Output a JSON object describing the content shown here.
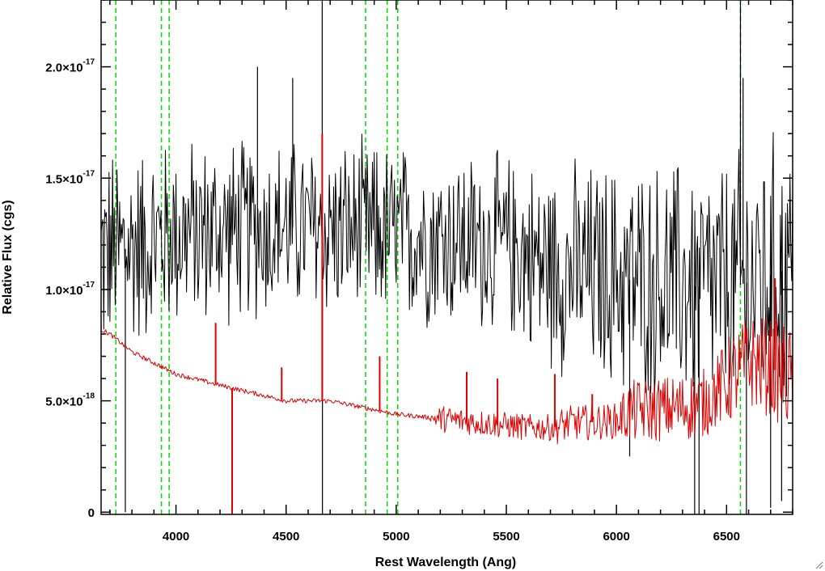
{
  "chart_data": {
    "type": "line",
    "xlabel": "Rest Wavelength (Ang)",
    "ylabel": "Relative Flux (cgs)",
    "xlim": [
      3660,
      6800
    ],
    "ylim": [
      -1e-19,
      2.3e-17
    ],
    "x_ticks": [
      4000,
      4500,
      5000,
      5500,
      6000,
      6500
    ],
    "x_tick_labels": [
      "4000",
      "4500",
      "5000",
      "5500",
      "6000",
      "6500"
    ],
    "x_minor_step": 100,
    "y_ticks": [
      {
        "value": 0,
        "mantissa": "0",
        "exponent": ""
      },
      {
        "value": 5e-18,
        "mantissa": "5.0×10",
        "exponent": "-18"
      },
      {
        "value": 1e-17,
        "mantissa": "1.0×10",
        "exponent": "-17"
      },
      {
        "value": 1.5e-17,
        "mantissa": "1.5×10",
        "exponent": "-17"
      },
      {
        "value": 2e-17,
        "mantissa": "2.0×10",
        "exponent": "-17"
      }
    ],
    "y_minor_step": 1e-18,
    "grid": false,
    "legend": "none",
    "marker_lines": {
      "color": "#00dd00",
      "style": "dashed",
      "x": [
        3727,
        3934,
        3969,
        4861,
        4959,
        5007,
        6563
      ]
    },
    "series": [
      {
        "color": "#000000",
        "x_start": 3660,
        "x_end": 6800,
        "x_step": 4,
        "level_points": [
          [
            3660,
            11.5
          ],
          [
            4000,
            12.5
          ],
          [
            4500,
            12.8
          ],
          [
            5000,
            12.5
          ],
          [
            5500,
            12.0
          ],
          [
            5700,
            11.0
          ],
          [
            6000,
            10.5
          ],
          [
            6500,
            10.0
          ],
          [
            6800,
            11.0
          ]
        ],
        "noise_amplitude_points": [
          [
            3660,
            4.5
          ],
          [
            4000,
            4.0
          ],
          [
            4500,
            3.8
          ],
          [
            5000,
            3.8
          ],
          [
            5500,
            3.8
          ],
          [
            5800,
            4.6
          ],
          [
            6100,
            5.0
          ],
          [
            6500,
            5.6
          ],
          [
            6800,
            6.0
          ]
        ],
        "spikes": [
          [
            4664,
            31
          ],
          [
            6563,
            31
          ],
          [
            4665,
            -2
          ],
          [
            3770,
            0
          ],
          [
            4370,
            20
          ],
          [
            4530,
            19.5
          ],
          [
            6575,
            19.5
          ],
          [
            6375,
            -1
          ],
          [
            6355,
            -0.5
          ],
          [
            6060,
            2.5
          ],
          [
            6590,
            -1
          ],
          [
            6700,
            0.2
          ],
          [
            6750,
            0.5
          ]
        ]
      },
      {
        "color": "#dd0000",
        "x_start": 3660,
        "x_end": 6800,
        "x_step": 4,
        "continuum_points": [
          [
            3660,
            8.2
          ],
          [
            3700,
            8.0
          ],
          [
            3800,
            7.2
          ],
          [
            3900,
            6.7
          ],
          [
            4000,
            6.2
          ],
          [
            4200,
            5.7
          ],
          [
            4500,
            5.0
          ],
          [
            4700,
            5.0
          ],
          [
            4900,
            4.6
          ],
          [
            5000,
            4.4
          ],
          [
            5200,
            4.2
          ],
          [
            5400,
            4.0
          ],
          [
            5600,
            3.8
          ],
          [
            5700,
            3.8
          ],
          [
            5800,
            4.0
          ],
          [
            6000,
            4.1
          ],
          [
            6050,
            4.5
          ],
          [
            6300,
            4.7
          ],
          [
            6400,
            4.9
          ],
          [
            6500,
            5.8
          ],
          [
            6600,
            6.8
          ],
          [
            6700,
            6.5
          ],
          [
            6800,
            5.9
          ]
        ],
        "noise_amplitude_points": [
          [
            3660,
            0.1
          ],
          [
            5150,
            0.1
          ],
          [
            5200,
            0.6
          ],
          [
            5700,
            0.6
          ],
          [
            5720,
            0.8
          ],
          [
            6000,
            0.8
          ],
          [
            6050,
            1.4
          ],
          [
            6450,
            1.6
          ],
          [
            6500,
            2.0
          ],
          [
            6800,
            2.4
          ]
        ],
        "emission_lines": [
          [
            4180,
            8.5
          ],
          [
            4480,
            6.5
          ],
          [
            4664,
            17.0
          ],
          [
            4925,
            7.0
          ],
          [
            5320,
            6.3
          ],
          [
            5460,
            6.0
          ],
          [
            5720,
            6.2
          ],
          [
            5890,
            5.3
          ],
          [
            6560,
            7.2
          ],
          [
            6720,
            10.5
          ]
        ],
        "absorption_lines": [
          [
            4255,
            -0.3
          ]
        ]
      }
    ]
  }
}
